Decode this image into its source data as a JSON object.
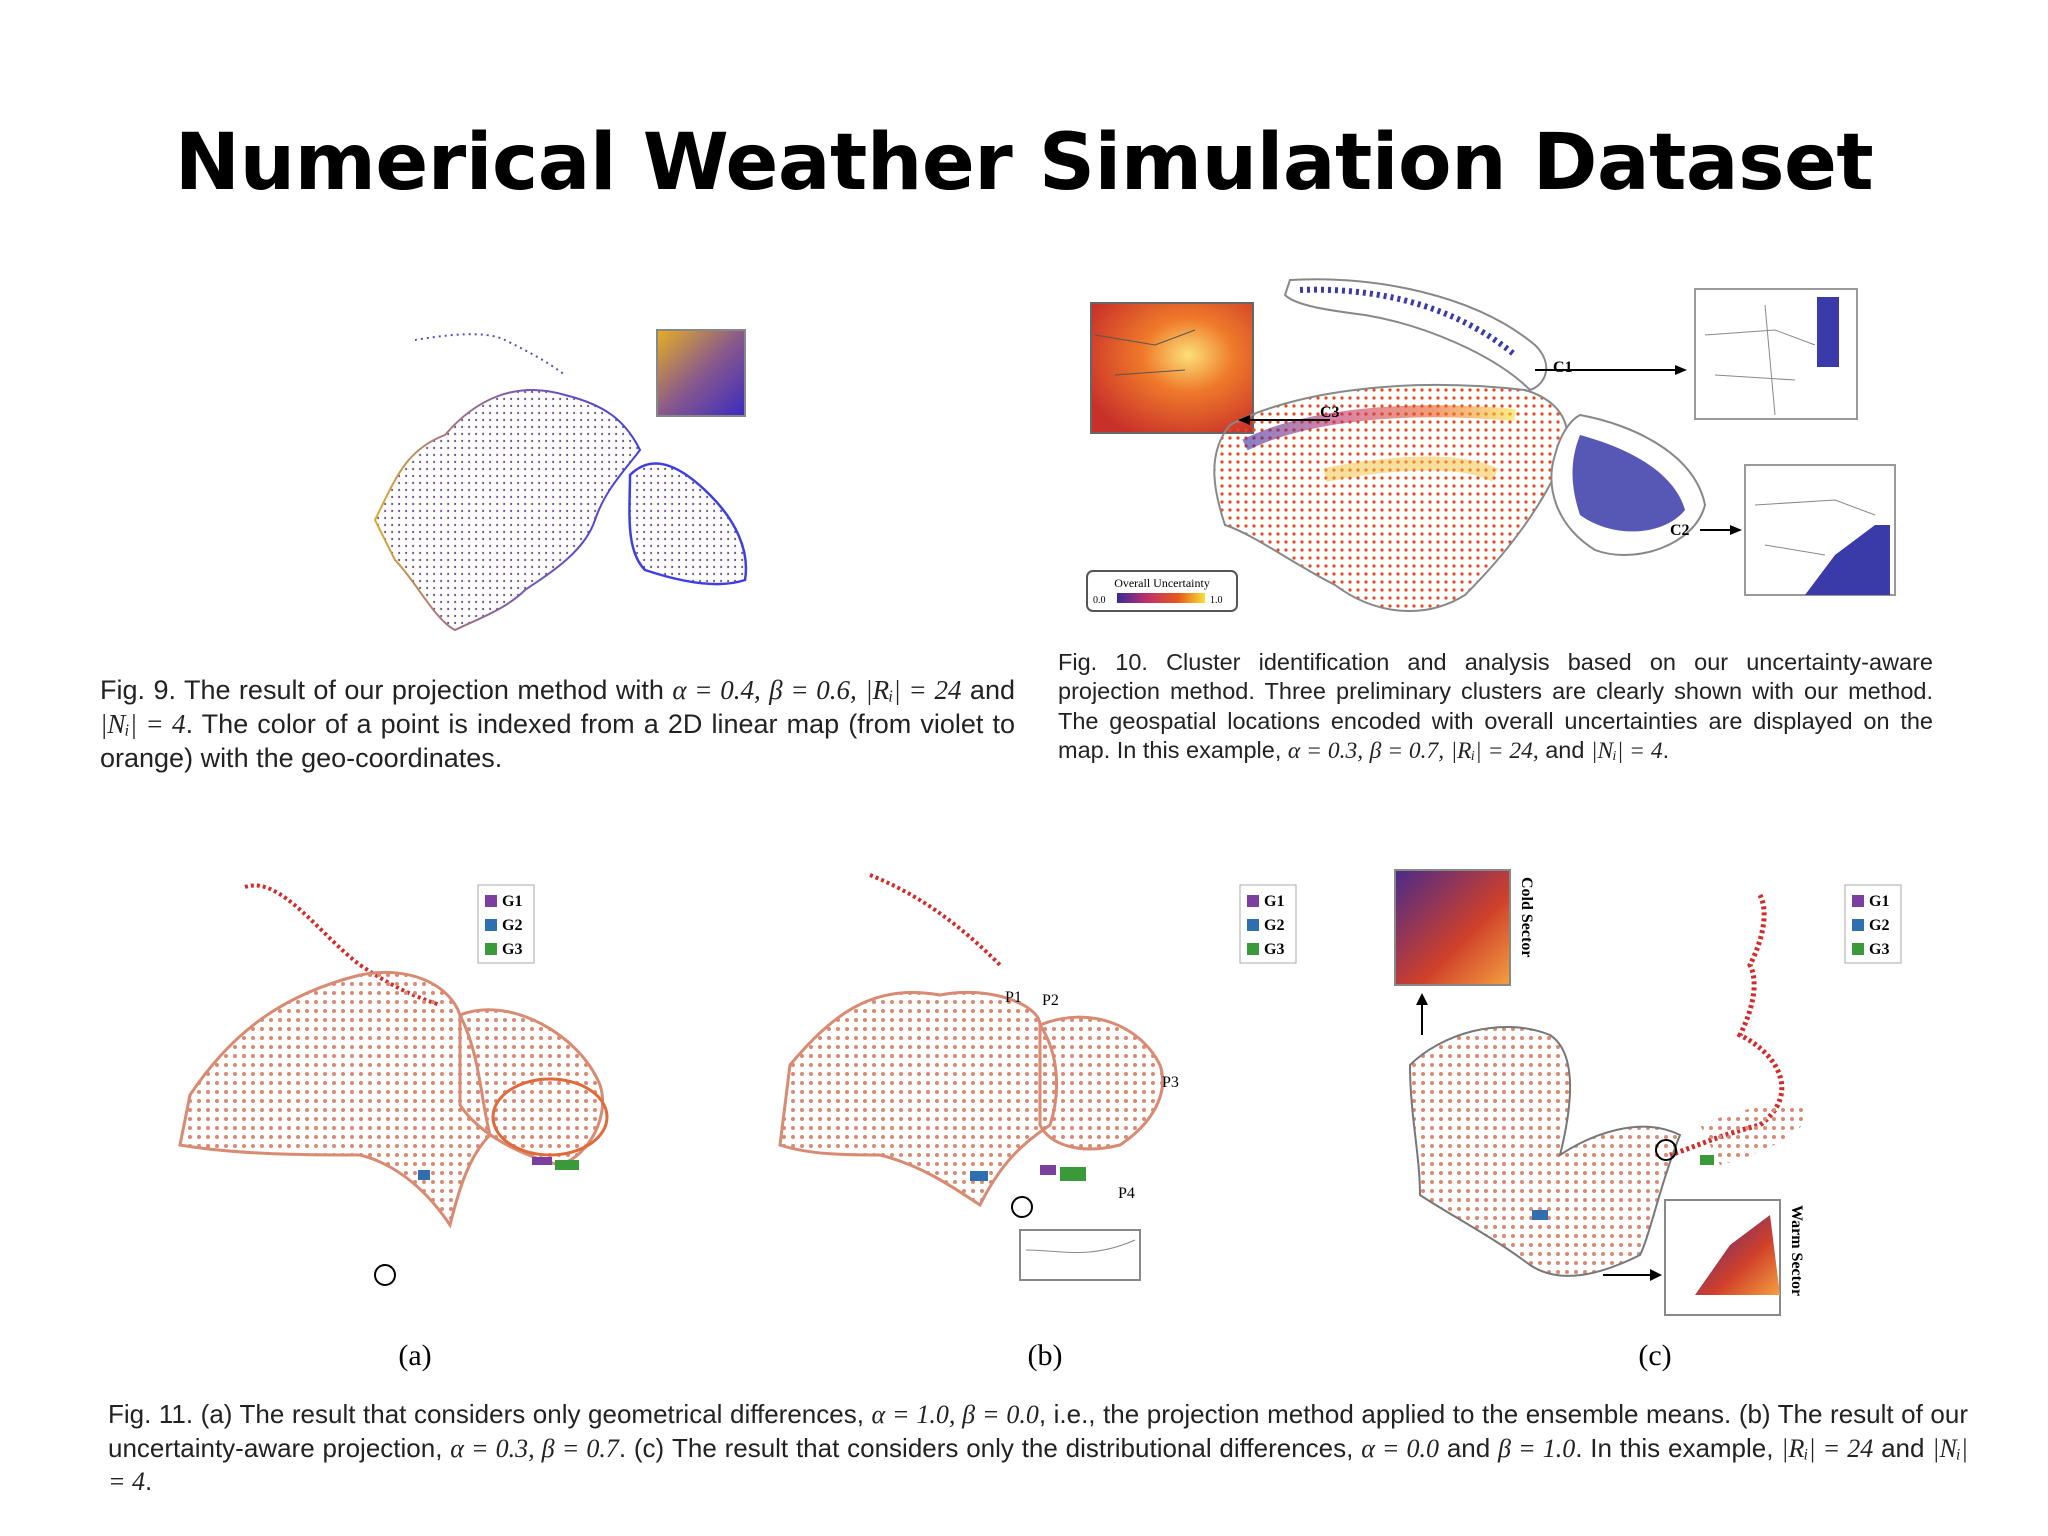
{
  "slide": {
    "title": "Numerical Weather Simulation Dataset"
  },
  "fig9": {
    "caption_parts": {
      "p1": "Fig. 9. The result of our projection method with ",
      "m1": "α = 0.4,",
      "p2": " ",
      "m2": "β = 0.6,",
      "m3": "|Rᵢ| = 24",
      "p3": " and ",
      "m4": "|Nᵢ| = 4",
      "p4": ". The color of a point is indexed from a 2D linear map (from violet to orange) with the geo-coordinates."
    }
  },
  "fig10": {
    "labels": {
      "c1": "C1",
      "c2": "C2",
      "c3": "C3"
    },
    "legend": {
      "title": "Overall Uncertainty",
      "min": "0.0",
      "max": "1.0"
    },
    "caption_parts": {
      "p1": "Fig. 10. Cluster identification and analysis based on our uncertainty-aware projection method. Three preliminary clusters are clearly shown with our method. The geospatial locations encoded with overall uncertainties are displayed on the map. In this example, ",
      "m1": "α = 0.3,",
      "p2": " ",
      "m2": "β = 0.7,",
      "m3": "|Rᵢ| = 24,",
      "p3": " and ",
      "m4": "|Nᵢ| = 4",
      "p4": "."
    }
  },
  "fig11": {
    "legend": [
      "G1",
      "G2",
      "G3"
    ],
    "legend_colors": [
      "#7b3fa0",
      "#2f6fb0",
      "#3a9a3a"
    ],
    "panel_labels": [
      "(a)",
      "(b)",
      "(c)"
    ],
    "point_labels": {
      "p1": "P1",
      "p2": "P2",
      "p3": "P3",
      "p4": "P4"
    },
    "sector_labels": {
      "cold": "Cold Sector",
      "warm": "Warm Sector"
    },
    "caption_parts": {
      "p1": "Fig. 11. (a) The result that considers only geometrical differences, ",
      "m1": "α = 1.0, β = 0.0",
      "p2": ", i.e., the projection method applied to the ensemble means. (b) The result of our uncertainty-aware projection, ",
      "m2": "α = 0.3, β = 0.7",
      "p3": ". (c) The result that considers only the distributional differences, ",
      "m3": "α = 0.0",
      "p4": " and ",
      "m4": "β = 1.0",
      "p5": ". In this example, ",
      "m5": "|Rᵢ| = 24",
      "p6": " and ",
      "m6": "|Nᵢ| = 4",
      "p7": "."
    }
  }
}
